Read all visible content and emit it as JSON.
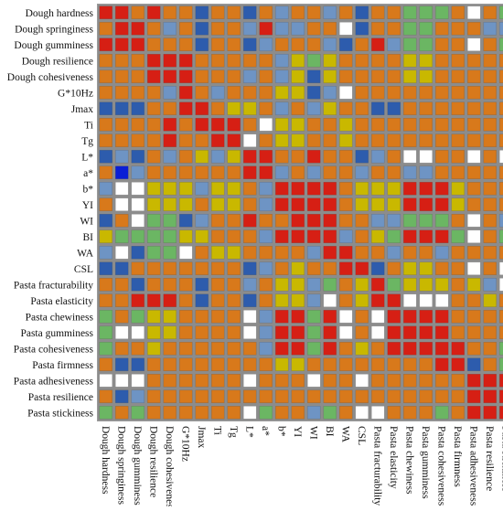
{
  "chart_data": {
    "type": "heatmap",
    "title": "",
    "xlabel": "",
    "ylabel": "",
    "labels": [
      "Dough hardness",
      "Dough springiness",
      "Dough gumminess",
      "Dough resilience",
      "Dough cohesiveness",
      "G*10Hz",
      "Jmax",
      "Ti",
      "Tg",
      "L*",
      "a*",
      "b*",
      "YI",
      "WI",
      "BI",
      "WA",
      "CSL",
      "Pasta fracturability",
      "Pasta elasticity",
      "Pasta chewiness",
      "Pasta gumminess",
      "Pasta cohesiveness",
      "Pasta firmness",
      "Pasta adhesiveness",
      "Pasta resilience",
      "Pasta stickiness"
    ],
    "color_classes": {
      "R": "#d61f14",
      "O": "#d8791b",
      "Y": "#c9b800",
      "G": "#6bb663",
      "L": "#6e94c4",
      "B": "#2d5cad",
      "D": "#0a1ed6",
      "W": "#ffffff"
    },
    "matrix": [
      "RROROOBOOBOLOOLOBOOGGGOWOG",
      "ORROLOBOOLRLLOOWBOOGGOOOLL",
      "RRROOOBOOBLOOOLBORLGGOOWOG",
      "OOORRROOOOOLYGYOOOOYYOOOOO",
      "OOORRROOOLOLYBYOOOOYYOOOOO",
      "OOOOLROLOOOYYBLWOOOOOOOOOO",
      "BBBOORROYYOLOLYOOBBOOOOOOO",
      "OOOORORRROWYYOOYOOOOOOOOOO",
      "OOOOROORRWOYYOOYOOOOOOOOOO",
      "BLBOLOYLYRROOROOBLOWWOOWOW",
      "ODLOOOOOORRLOLOOLOOLLOOOOO",
      "LWWYYYLYYOLRRRROYYYRRRYOOO",
      "OWWYYYOYYOLRRRROYYYRRRYOOO",
      "BOWGGBLOOROORRROOLLGGGOWOL",
      "YGGGGYYOOOLRRRRLOYGRRRGWOG",
      "LWBGGWOYYOOOOLRROOLOOLOOOO",
      "BBOOOOOOOBLOYOORRBOYYOOWOW",
      "OOBOOOBOOLOYYLGOYRGYYYOYLW",
      "OORRROBOOBOYYLWOYRRWWWOOYO",
      "GOGYYOOOOWLRRGRWOWRRRROOOO",
      "GWWYYOOOOWLRRGRWOWRRRROOOO",
      "GOOYOOOOOOLRRGROYORRRRROOG",
      "OBBOOOOOOOOYYOOOOOOOORRBOG",
      "WWWOOOOOOWOOOWOOWOOOOOORRR",
      "OBLOOOOOOOOOOOOOOOOOOOORRR",
      "GOGOOOOOOWGOOLGOWWOOOGORRR"
    ]
  }
}
